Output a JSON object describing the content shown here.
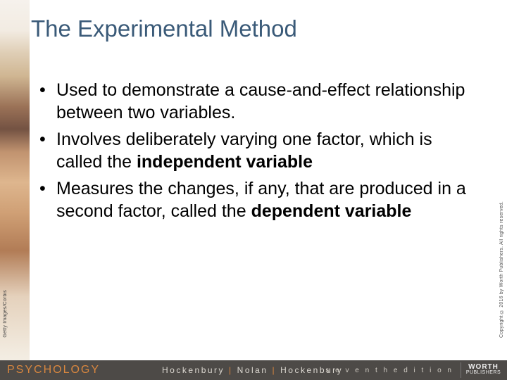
{
  "colors": {
    "title": "#3a5a78",
    "footer_bg": "#4d4a47",
    "accent_orange": "#d9873f",
    "body_text": "#000000",
    "footer_text": "#e9e6e0"
  },
  "title": "The Experimental Method",
  "bullets": [
    {
      "prefix": "Used to demonstrate a cause-and-effect relationship between two variables.",
      "bold": ""
    },
    {
      "prefix": "Involves deliberately varying one factor, which is called the ",
      "bold": "independent variable"
    },
    {
      "prefix": "Measures the changes, if any, that are produced in a second factor, called the ",
      "bold": "dependent variable"
    }
  ],
  "left_credit": "Getty Images/Corbis",
  "right_credit": "Copyright © 2016 by Worth Publishers. All rights reserved.",
  "footer": {
    "subject": "PSYCHOLOGY",
    "authors": [
      "Hockenbury",
      "Nolan",
      "Hockenbury"
    ],
    "edition": "s e v e n t h   e d i t i o n",
    "publisher_top": "WORTH",
    "publisher_bottom": "PUBLISHERS"
  }
}
